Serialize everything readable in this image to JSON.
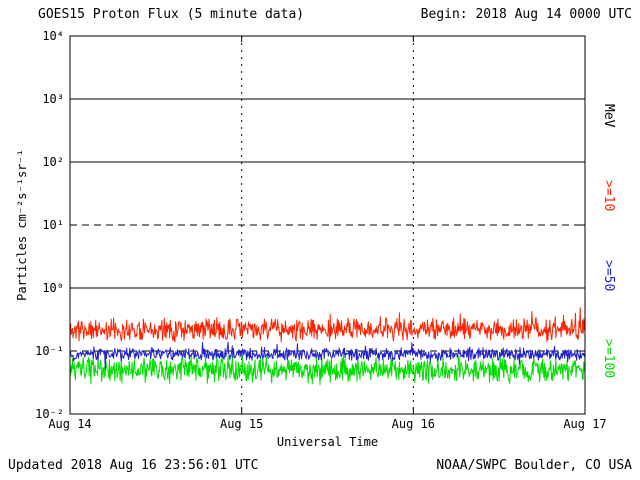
{
  "header": {
    "title": "GOES15 Proton Flux (5 minute data)",
    "begin": "Begin: 2018 Aug 14 0000 UTC"
  },
  "footer": {
    "updated": "Updated 2018 Aug 16 23:56:01 UTC",
    "source": "NOAA/SWPC Boulder, CO USA"
  },
  "chart_data": {
    "type": "line",
    "title": "GOES15 Proton Flux (5 minute data)",
    "xlabel": "Universal Time",
    "ylabel": "Particles cm⁻²s⁻¹sr⁻¹",
    "right_axis_label": "MeV",
    "y_scale": "log",
    "ylim": [
      0.01,
      10000
    ],
    "ylim_exponents": [
      -2,
      4
    ],
    "y_ticks": [
      "10⁴",
      "10³",
      "10²",
      "10¹",
      "10⁰",
      "10⁻¹",
      "10⁻²"
    ],
    "y_tick_exponents": [
      4,
      3,
      2,
      1,
      0,
      -1,
      -2
    ],
    "x_ticks": [
      "Aug 14",
      "Aug 15",
      "Aug 16",
      "Aug 17"
    ],
    "days": 3,
    "points_per_day": 288,
    "grid": {
      "vertical_day_lines": "dotted"
    },
    "reference_lines": [
      {
        "value_exponent": 3,
        "style": "solid"
      },
      {
        "value_exponent": 2,
        "style": "solid"
      },
      {
        "value_exponent": 1,
        "style": "dashed"
      },
      {
        "value_exponent": 0,
        "style": "solid"
      },
      {
        "value_exponent": -1,
        "style": "dashed"
      }
    ],
    "legend_position": "right-rotated",
    "series": [
      {
        "name": ">=10",
        "unit": "MeV",
        "color": "#ff2200",
        "approx_flux_mean": 0.21,
        "approx_flux_range": [
          0.12,
          0.5
        ],
        "log_mean": -0.66,
        "log_spread": 0.2,
        "spike_prob": 0.05,
        "spike_amp": 0.22,
        "dip_prob": 0,
        "dip_amp": 0,
        "seed": 11
      },
      {
        "name": ">=50",
        "unit": "MeV",
        "color": "#2222cc",
        "approx_flux_mean": 0.088,
        "approx_flux_range": [
          0.055,
          0.15
        ],
        "log_mean": -1.05,
        "log_spread": 0.12,
        "spike_prob": 0.03,
        "spike_amp": 0.15,
        "dip_prob": 0.02,
        "dip_amp": 0.2,
        "seed": 22
      },
      {
        "name": ">=100",
        "unit": "MeV",
        "color": "#00dd00",
        "approx_flux_mean": 0.05,
        "approx_flux_range": [
          0.028,
          0.09
        ],
        "log_mean": -1.3,
        "log_spread": 0.24,
        "spike_prob": 0,
        "spike_amp": 0,
        "dip_prob": 0,
        "dip_amp": 0,
        "seed": 33
      }
    ]
  }
}
